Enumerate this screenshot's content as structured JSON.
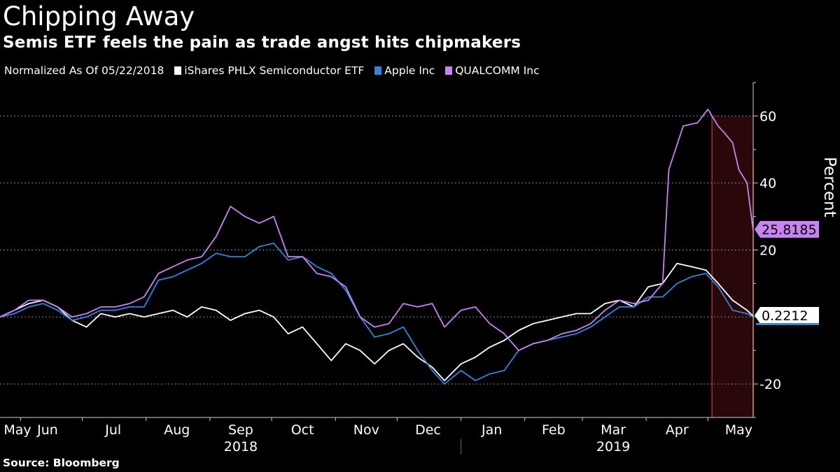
{
  "header": {
    "title": "Chipping Away",
    "subtitle": "Semis ETF feels the pain as trade angst hits chipmakers"
  },
  "footer": {
    "source": "Source: Bloomberg"
  },
  "colors": {
    "background": "#000000",
    "etf": "#ffffff",
    "apple": "#2f86e0",
    "qualcomm": "#c783f2",
    "highlight": "#c0262e"
  },
  "chart_data": {
    "type": "line",
    "legend_prefix": "Normalized As Of 05/22/2018",
    "legend_position": "top-left",
    "ylabel": "Percent",
    "yticks": [
      60,
      40,
      20,
      -20
    ],
    "ylim": [
      -30,
      70
    ],
    "grid": true,
    "x_range": [
      "2018-05-22",
      "2019-05-23"
    ],
    "month_labels": [
      {
        "label": "May",
        "date": "2018-05-22"
      },
      {
        "label": "Jun",
        "date": "2018-06-15"
      },
      {
        "label": "Jul",
        "date": "2018-07-16"
      },
      {
        "label": "Aug",
        "date": "2018-08-16"
      },
      {
        "label": "Sep",
        "date": "2018-09-16"
      },
      {
        "label": "Oct",
        "date": "2018-10-16"
      },
      {
        "label": "Nov",
        "date": "2018-11-16"
      },
      {
        "label": "Dec",
        "date": "2018-12-16"
      },
      {
        "label": "Jan",
        "date": "2019-01-16"
      },
      {
        "label": "Feb",
        "date": "2019-02-15"
      },
      {
        "label": "Mar",
        "date": "2019-03-16"
      },
      {
        "label": "Apr",
        "date": "2019-04-16"
      },
      {
        "label": "May",
        "date": "2019-05-16"
      }
    ],
    "year_labels": [
      {
        "label": "2018",
        "date": "2018-09-16"
      },
      {
        "label": "2019",
        "date": "2019-03-16"
      }
    ],
    "year_divider": "2019-01-01",
    "highlight_range": [
      "2019-05-03",
      "2019-05-23"
    ],
    "series": [
      {
        "name": "iShares PHLX Semiconductor ETF",
        "color": "#ffffff",
        "last_value": "0.2212",
        "points": [
          [
            "2018-05-22",
            0
          ],
          [
            "2018-05-29",
            2
          ],
          [
            "2018-06-05",
            4
          ],
          [
            "2018-06-12",
            5
          ],
          [
            "2018-06-19",
            3
          ],
          [
            "2018-06-26",
            -1
          ],
          [
            "2018-07-03",
            -3
          ],
          [
            "2018-07-10",
            1
          ],
          [
            "2018-07-17",
            0
          ],
          [
            "2018-07-24",
            1
          ],
          [
            "2018-07-31",
            0
          ],
          [
            "2018-08-07",
            1
          ],
          [
            "2018-08-14",
            2
          ],
          [
            "2018-08-21",
            0
          ],
          [
            "2018-08-28",
            3
          ],
          [
            "2018-09-04",
            2
          ],
          [
            "2018-09-11",
            -1
          ],
          [
            "2018-09-18",
            1
          ],
          [
            "2018-09-25",
            2
          ],
          [
            "2018-10-02",
            0
          ],
          [
            "2018-10-09",
            -5
          ],
          [
            "2018-10-16",
            -3
          ],
          [
            "2018-10-23",
            -8
          ],
          [
            "2018-10-30",
            -13
          ],
          [
            "2018-11-06",
            -8
          ],
          [
            "2018-11-13",
            -10
          ],
          [
            "2018-11-20",
            -14
          ],
          [
            "2018-11-27",
            -10
          ],
          [
            "2018-12-04",
            -8
          ],
          [
            "2018-12-11",
            -12
          ],
          [
            "2018-12-18",
            -15
          ],
          [
            "2018-12-24",
            -19
          ],
          [
            "2019-01-01",
            -14
          ],
          [
            "2019-01-08",
            -12
          ],
          [
            "2019-01-15",
            -9
          ],
          [
            "2019-01-22",
            -7
          ],
          [
            "2019-01-29",
            -4
          ],
          [
            "2019-02-05",
            -2
          ],
          [
            "2019-02-12",
            -1
          ],
          [
            "2019-02-19",
            0
          ],
          [
            "2019-02-26",
            1
          ],
          [
            "2019-03-05",
            1
          ],
          [
            "2019-03-12",
            4
          ],
          [
            "2019-03-19",
            5
          ],
          [
            "2019-03-26",
            3
          ],
          [
            "2019-04-02",
            9
          ],
          [
            "2019-04-09",
            10
          ],
          [
            "2019-04-16",
            16
          ],
          [
            "2019-04-23",
            15
          ],
          [
            "2019-04-30",
            14
          ],
          [
            "2019-05-06",
            10
          ],
          [
            "2019-05-13",
            5
          ],
          [
            "2019-05-20",
            2
          ],
          [
            "2019-05-23",
            0.2212
          ]
        ]
      },
      {
        "name": "Apple Inc",
        "color": "#2f86e0",
        "last_value": "",
        "points": [
          [
            "2018-05-22",
            0
          ],
          [
            "2018-05-29",
            1
          ],
          [
            "2018-06-05",
            3
          ],
          [
            "2018-06-12",
            4
          ],
          [
            "2018-06-19",
            2
          ],
          [
            "2018-06-26",
            -1
          ],
          [
            "2018-07-03",
            0
          ],
          [
            "2018-07-10",
            2
          ],
          [
            "2018-07-17",
            2
          ],
          [
            "2018-07-24",
            3
          ],
          [
            "2018-07-31",
            3
          ],
          [
            "2018-08-07",
            11
          ],
          [
            "2018-08-14",
            12
          ],
          [
            "2018-08-21",
            14
          ],
          [
            "2018-08-28",
            16
          ],
          [
            "2018-09-04",
            19
          ],
          [
            "2018-09-11",
            18
          ],
          [
            "2018-09-18",
            18
          ],
          [
            "2018-09-25",
            21
          ],
          [
            "2018-10-02",
            22
          ],
          [
            "2018-10-09",
            17
          ],
          [
            "2018-10-16",
            18
          ],
          [
            "2018-10-23",
            15
          ],
          [
            "2018-10-30",
            13
          ],
          [
            "2018-11-06",
            8
          ],
          [
            "2018-11-13",
            0
          ],
          [
            "2018-11-20",
            -6
          ],
          [
            "2018-11-27",
            -5
          ],
          [
            "2018-12-04",
            -3
          ],
          [
            "2018-12-11",
            -10
          ],
          [
            "2018-12-18",
            -16
          ],
          [
            "2018-12-24",
            -20
          ],
          [
            "2019-01-01",
            -16
          ],
          [
            "2019-01-08",
            -19
          ],
          [
            "2019-01-15",
            -17
          ],
          [
            "2019-01-22",
            -16
          ],
          [
            "2019-01-29",
            -10
          ],
          [
            "2019-02-05",
            -8
          ],
          [
            "2019-02-12",
            -7
          ],
          [
            "2019-02-19",
            -6
          ],
          [
            "2019-02-26",
            -5
          ],
          [
            "2019-03-05",
            -3
          ],
          [
            "2019-03-12",
            0
          ],
          [
            "2019-03-19",
            3
          ],
          [
            "2019-03-26",
            3
          ],
          [
            "2019-04-02",
            6
          ],
          [
            "2019-04-09",
            6
          ],
          [
            "2019-04-16",
            10
          ],
          [
            "2019-04-23",
            12
          ],
          [
            "2019-04-30",
            13
          ],
          [
            "2019-05-06",
            9
          ],
          [
            "2019-05-13",
            2
          ],
          [
            "2019-05-20",
            1
          ],
          [
            "2019-05-23",
            0
          ]
        ]
      },
      {
        "name": "QUALCOMM Inc",
        "color": "#c783f2",
        "last_value": "25.8185",
        "points": [
          [
            "2018-05-22",
            0
          ],
          [
            "2018-05-29",
            2
          ],
          [
            "2018-06-05",
            5
          ],
          [
            "2018-06-12",
            5
          ],
          [
            "2018-06-19",
            3
          ],
          [
            "2018-06-26",
            0
          ],
          [
            "2018-07-03",
            1
          ],
          [
            "2018-07-10",
            3
          ],
          [
            "2018-07-17",
            3
          ],
          [
            "2018-07-24",
            4
          ],
          [
            "2018-07-31",
            6
          ],
          [
            "2018-08-07",
            13
          ],
          [
            "2018-08-14",
            15
          ],
          [
            "2018-08-21",
            17
          ],
          [
            "2018-08-28",
            18
          ],
          [
            "2018-09-04",
            24
          ],
          [
            "2018-09-11",
            33
          ],
          [
            "2018-09-18",
            30
          ],
          [
            "2018-09-25",
            28
          ],
          [
            "2018-10-02",
            30
          ],
          [
            "2018-10-09",
            18
          ],
          [
            "2018-10-16",
            18
          ],
          [
            "2018-10-23",
            13
          ],
          [
            "2018-10-30",
            12
          ],
          [
            "2018-11-06",
            9
          ],
          [
            "2018-11-13",
            0
          ],
          [
            "2018-11-20",
            -3
          ],
          [
            "2018-11-27",
            -2
          ],
          [
            "2018-12-04",
            4
          ],
          [
            "2018-12-11",
            3
          ],
          [
            "2018-12-18",
            4
          ],
          [
            "2018-12-24",
            -3
          ],
          [
            "2019-01-01",
            2
          ],
          [
            "2019-01-08",
            3
          ],
          [
            "2019-01-15",
            -2
          ],
          [
            "2019-01-22",
            -5
          ],
          [
            "2019-01-29",
            -10
          ],
          [
            "2019-02-05",
            -8
          ],
          [
            "2019-02-12",
            -7
          ],
          [
            "2019-02-19",
            -5
          ],
          [
            "2019-02-26",
            -4
          ],
          [
            "2019-03-05",
            -2
          ],
          [
            "2019-03-12",
            2
          ],
          [
            "2019-03-19",
            5
          ],
          [
            "2019-03-26",
            4
          ],
          [
            "2019-04-02",
            5
          ],
          [
            "2019-04-09",
            10
          ],
          [
            "2019-04-12",
            44
          ],
          [
            "2019-04-19",
            57
          ],
          [
            "2019-04-26",
            58
          ],
          [
            "2019-05-01",
            62
          ],
          [
            "2019-05-06",
            57
          ],
          [
            "2019-05-09",
            55
          ],
          [
            "2019-05-13",
            52
          ],
          [
            "2019-05-16",
            44
          ],
          [
            "2019-05-20",
            40
          ],
          [
            "2019-05-23",
            25.8185
          ]
        ]
      }
    ]
  }
}
